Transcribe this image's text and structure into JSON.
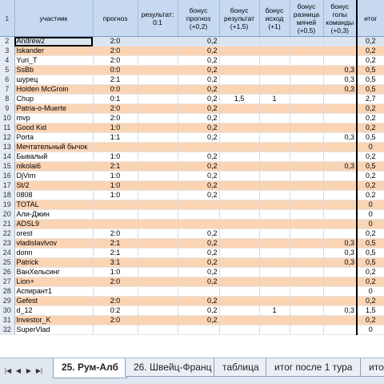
{
  "headers": {
    "row_number": "1",
    "participant": "участник",
    "forecast": "прогноз",
    "result": "результат: 0:1",
    "bonus_forecast": "бонус прогноз (+0,2)",
    "bonus_result": "бонус результат (+1,5)",
    "bonus_outcome": "бонус исход (+1)",
    "bonus_goal_diff": "бонус разница мячей (+0,5)",
    "bonus_team_goals": "бонус голы команды (+0,3)",
    "total": "итог"
  },
  "rows": [
    {
      "n": "2",
      "name": "Andrew2",
      "forecast": "2:0",
      "bonus_forecast": "0,2",
      "bonus_result": "",
      "bonus_outcome": "",
      "bonus_team_goals": "",
      "total": "0,2"
    },
    {
      "n": "3",
      "name": "Iskander",
      "forecast": "2:0",
      "bonus_forecast": "0,2",
      "bonus_result": "",
      "bonus_outcome": "",
      "bonus_team_goals": "",
      "total": "0,2"
    },
    {
      "n": "4",
      "name": "Yuri_T",
      "forecast": "2:0",
      "bonus_forecast": "0,2",
      "bonus_result": "",
      "bonus_outcome": "",
      "bonus_team_goals": "",
      "total": "0,2"
    },
    {
      "n": "5",
      "name": "SsBb",
      "forecast": "0:0",
      "bonus_forecast": "0,2",
      "bonus_result": "",
      "bonus_outcome": "",
      "bonus_team_goals": "0,3",
      "total": "0,5"
    },
    {
      "n": "6",
      "name": "шурец",
      "forecast": "2:1",
      "bonus_forecast": "0,2",
      "bonus_result": "",
      "bonus_outcome": "",
      "bonus_team_goals": "0,3",
      "total": "0,5"
    },
    {
      "n": "7",
      "name": "Holden McGroin",
      "forecast": "0:0",
      "bonus_forecast": "0,2",
      "bonus_result": "",
      "bonus_outcome": "",
      "bonus_team_goals": "0,3",
      "total": "0,5"
    },
    {
      "n": "8",
      "name": "Chup",
      "forecast": "0:1",
      "bonus_forecast": "0,2",
      "bonus_result": "1,5",
      "bonus_outcome": "1",
      "bonus_team_goals": "",
      "total": "2,7"
    },
    {
      "n": "9",
      "name": "Patria-o-Muerte",
      "forecast": "2:0",
      "bonus_forecast": "0,2",
      "bonus_result": "",
      "bonus_outcome": "",
      "bonus_team_goals": "",
      "total": "0,2"
    },
    {
      "n": "10",
      "name": "mvp",
      "forecast": "2:0",
      "bonus_forecast": "0,2",
      "bonus_result": "",
      "bonus_outcome": "",
      "bonus_team_goals": "",
      "total": "0,2"
    },
    {
      "n": "11",
      "name": "Good Kid",
      "forecast": "1:0",
      "bonus_forecast": "0,2",
      "bonus_result": "",
      "bonus_outcome": "",
      "bonus_team_goals": "",
      "total": "0,2"
    },
    {
      "n": "12",
      "name": "Porta",
      "forecast": "1:1",
      "bonus_forecast": "0,2",
      "bonus_result": "",
      "bonus_outcome": "",
      "bonus_team_goals": "0,3",
      "total": "0,5"
    },
    {
      "n": "13",
      "name": "Мечтательный бычок",
      "forecast": "",
      "bonus_forecast": "",
      "bonus_result": "",
      "bonus_outcome": "",
      "bonus_team_goals": "",
      "total": "0"
    },
    {
      "n": "14",
      "name": "Бывалый",
      "forecast": "1:0",
      "bonus_forecast": "0,2",
      "bonus_result": "",
      "bonus_outcome": "",
      "bonus_team_goals": "",
      "total": "0,2"
    },
    {
      "n": "15",
      "name": "nikolai6",
      "forecast": "2:1",
      "bonus_forecast": "0,2",
      "bonus_result": "",
      "bonus_outcome": "",
      "bonus_team_goals": "0,3",
      "total": "0,5"
    },
    {
      "n": "16",
      "name": "DjVim",
      "forecast": "1:0",
      "bonus_forecast": "0,2",
      "bonus_result": "",
      "bonus_outcome": "",
      "bonus_team_goals": "",
      "total": "0,2"
    },
    {
      "n": "17",
      "name": "St/2",
      "forecast": "1:0",
      "bonus_forecast": "0,2",
      "bonus_result": "",
      "bonus_outcome": "",
      "bonus_team_goals": "",
      "total": "0,2"
    },
    {
      "n": "18",
      "name": "0808",
      "forecast": "1:0",
      "bonus_forecast": "0,2",
      "bonus_result": "",
      "bonus_outcome": "",
      "bonus_team_goals": "",
      "total": "0,2"
    },
    {
      "n": "19",
      "name": "TOTAL",
      "forecast": "",
      "bonus_forecast": "",
      "bonus_result": "",
      "bonus_outcome": "",
      "bonus_team_goals": "",
      "total": "0"
    },
    {
      "n": "20",
      "name": "Али-Джин",
      "forecast": "",
      "bonus_forecast": "",
      "bonus_result": "",
      "bonus_outcome": "",
      "bonus_team_goals": "",
      "total": "0"
    },
    {
      "n": "21",
      "name": "ADSL9",
      "forecast": "",
      "bonus_forecast": "",
      "bonus_result": "",
      "bonus_outcome": "",
      "bonus_team_goals": "",
      "total": "0"
    },
    {
      "n": "22",
      "name": "orest",
      "forecast": "2:0",
      "bonus_forecast": "0,2",
      "bonus_result": "",
      "bonus_outcome": "",
      "bonus_team_goals": "",
      "total": "0,2"
    },
    {
      "n": "23",
      "name": "vladislavlvov",
      "forecast": "2:1",
      "bonus_forecast": "0,2",
      "bonus_result": "",
      "bonus_outcome": "",
      "bonus_team_goals": "0,3",
      "total": "0,5"
    },
    {
      "n": "24",
      "name": "donn",
      "forecast": "2:1",
      "bonus_forecast": "0,2",
      "bonus_result": "",
      "bonus_outcome": "",
      "bonus_team_goals": "0,3",
      "total": "0,5"
    },
    {
      "n": "25",
      "name": "Patrick",
      "forecast": "3:1",
      "bonus_forecast": "0,2",
      "bonus_result": "",
      "bonus_outcome": "",
      "bonus_team_goals": "0,3",
      "total": "0,5"
    },
    {
      "n": "26",
      "name": "ВанХельсинг",
      "forecast": "1:0",
      "bonus_forecast": "0,2",
      "bonus_result": "",
      "bonus_outcome": "",
      "bonus_team_goals": "",
      "total": "0,2"
    },
    {
      "n": "27",
      "name": "Lion+",
      "forecast": "2:0",
      "bonus_forecast": "0,2",
      "bonus_result": "",
      "bonus_outcome": "",
      "bonus_team_goals": "",
      "total": "0,2"
    },
    {
      "n": "28",
      "name": "Аспирант1",
      "forecast": "",
      "bonus_forecast": "",
      "bonus_result": "",
      "bonus_outcome": "",
      "bonus_team_goals": "",
      "total": "0"
    },
    {
      "n": "29",
      "name": "Gefest",
      "forecast": "2:0",
      "bonus_forecast": "0,2",
      "bonus_result": "",
      "bonus_outcome": "",
      "bonus_team_goals": "",
      "total": "0,2"
    },
    {
      "n": "30",
      "name": "d_12",
      "forecast": "0:2",
      "bonus_forecast": "0,2",
      "bonus_result": "",
      "bonus_outcome": "1",
      "bonus_team_goals": "0,3",
      "total": "1,5"
    },
    {
      "n": "31",
      "name": "Investor_K",
      "forecast": "2:0",
      "bonus_forecast": "0,2",
      "bonus_result": "",
      "bonus_outcome": "",
      "bonus_team_goals": "",
      "total": "0,2"
    },
    {
      "n": "32",
      "name": "SuperVlad",
      "forecast": "",
      "bonus_forecast": "",
      "bonus_result": "",
      "bonus_outcome": "",
      "bonus_team_goals": "",
      "total": "0"
    }
  ],
  "tabs": [
    {
      "label": "25. Рум-Алб",
      "active": true
    },
    {
      "label": "26. Швейц-Франц",
      "active": false
    },
    {
      "label": "таблица",
      "active": false
    },
    {
      "label": "итог после 1 тура",
      "active": false
    },
    {
      "label": "ито",
      "active": false
    }
  ],
  "nav_icons": [
    "first-sheet-icon",
    "prev-sheet-icon",
    "next-sheet-icon",
    "last-sheet-icon"
  ],
  "colors": {
    "row_odd": "#fbd4b4",
    "row_even": "#ffffff",
    "header_bg": "#c6d9f1",
    "selected_row": "#dbe5f1"
  }
}
